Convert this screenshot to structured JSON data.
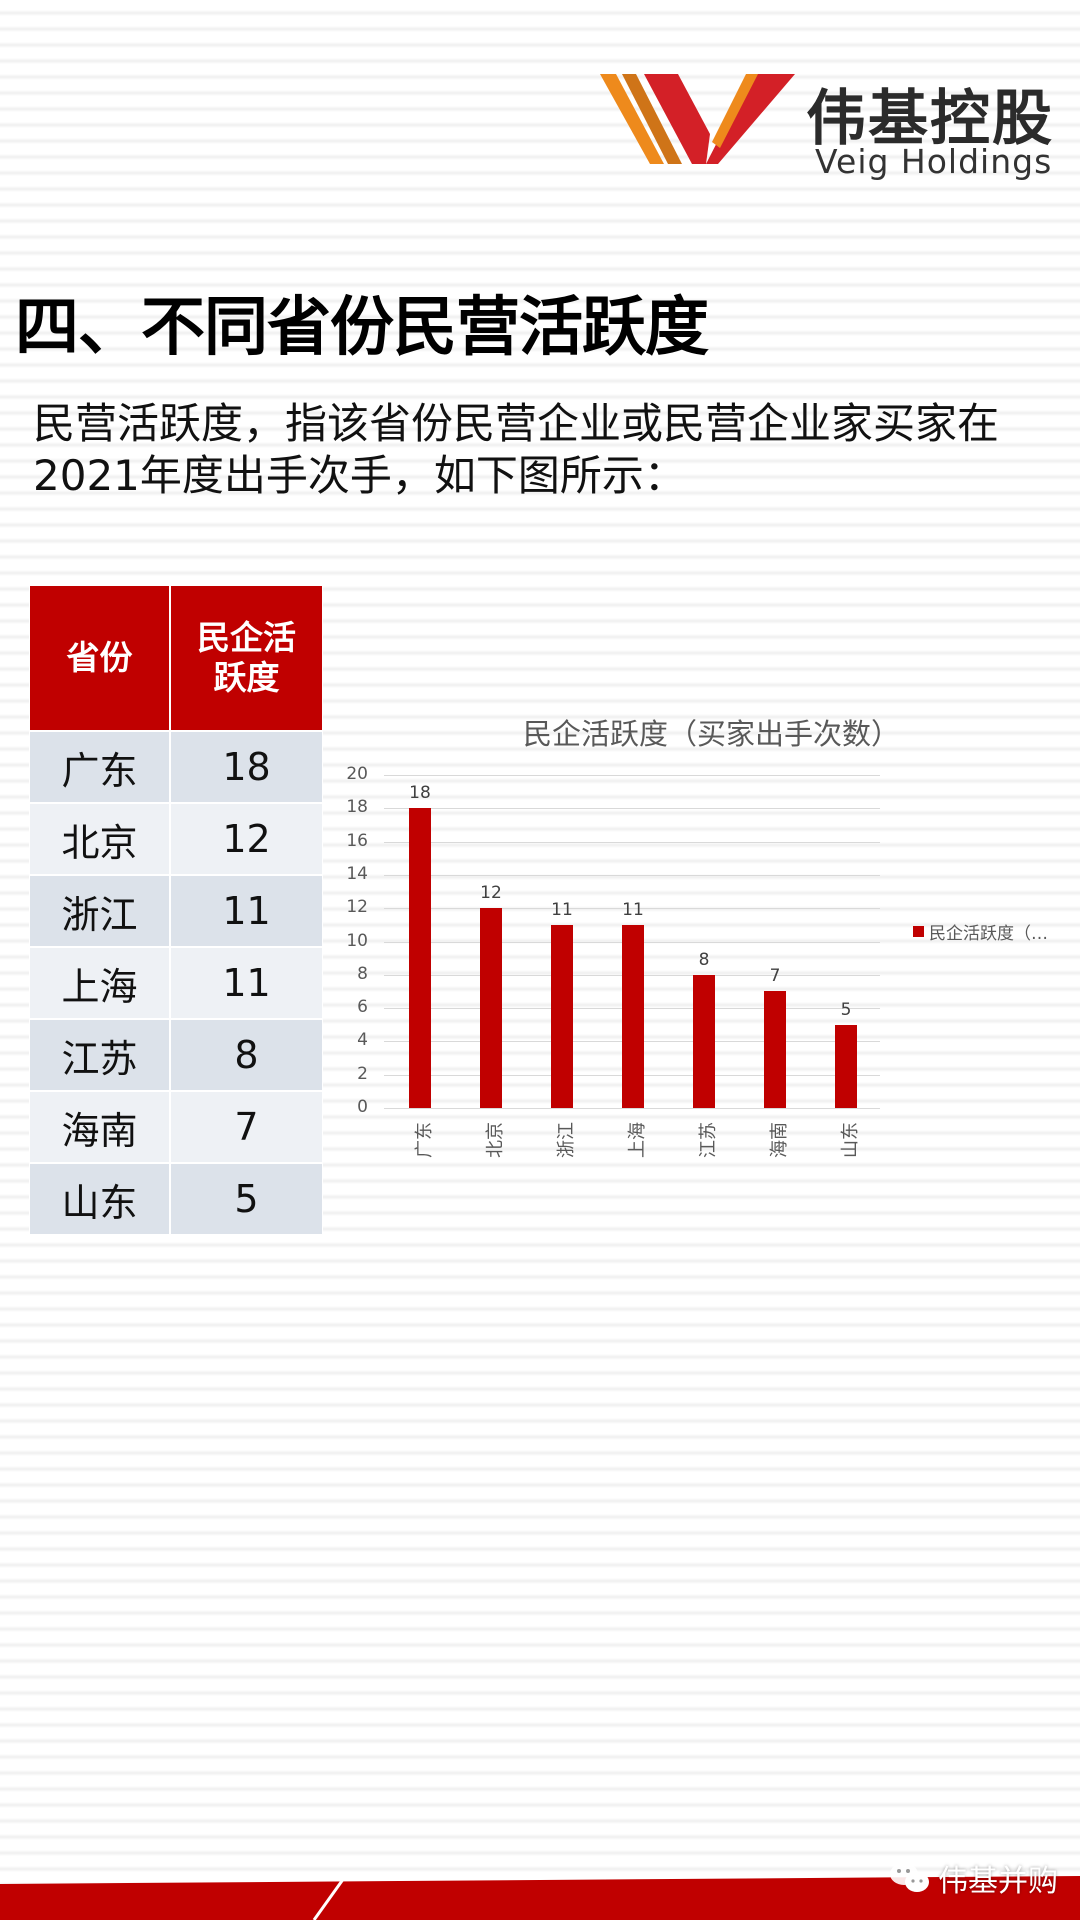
{
  "logo": {
    "name_cn": "伟基控股",
    "name_en": "Veig Holdings",
    "colors": {
      "red": "#d32027",
      "orange": "#ee8a1c",
      "dark_orange": "#cf7418"
    }
  },
  "title": "四、不同省份民营活跃度",
  "intro": "民营活跃度，指该省份民营企业或民营企业家买家在2021年度出手次手，如下图所示：",
  "table": {
    "headers": [
      "省份",
      "民企活跃度"
    ],
    "rows": [
      {
        "province": "广东",
        "value": "18"
      },
      {
        "province": "北京",
        "value": "12"
      },
      {
        "province": "浙江",
        "value": "11"
      },
      {
        "province": "上海",
        "value": "11"
      },
      {
        "province": "江苏",
        "value": "8"
      },
      {
        "province": "海南",
        "value": "7"
      },
      {
        "province": "山东",
        "value": "5"
      }
    ],
    "header_color": "#c00000"
  },
  "chart_data": {
    "type": "bar",
    "title": "民企活跃度（买家出手次数）",
    "categories": [
      "广东",
      "北京",
      "浙江",
      "上海",
      "江苏",
      "海南",
      "山东"
    ],
    "values": [
      18,
      12,
      11,
      11,
      8,
      7,
      5
    ],
    "series": [
      {
        "name": "民企活跃度（…",
        "values": [
          18,
          12,
          11,
          11,
          8,
          7,
          5
        ],
        "color": "#c00000"
      }
    ],
    "xlabel": "",
    "ylabel": "",
    "ylim": [
      0,
      20
    ],
    "yticks": [
      "0",
      "2",
      "4",
      "6",
      "8",
      "10",
      "12",
      "14",
      "16",
      "18",
      "20"
    ],
    "grid": true,
    "data_labels": true,
    "legend_position": "right",
    "legend_text": "民企活跃度（…"
  },
  "footer": {
    "watermark": "伟基并购",
    "band_color": "#c00000"
  }
}
